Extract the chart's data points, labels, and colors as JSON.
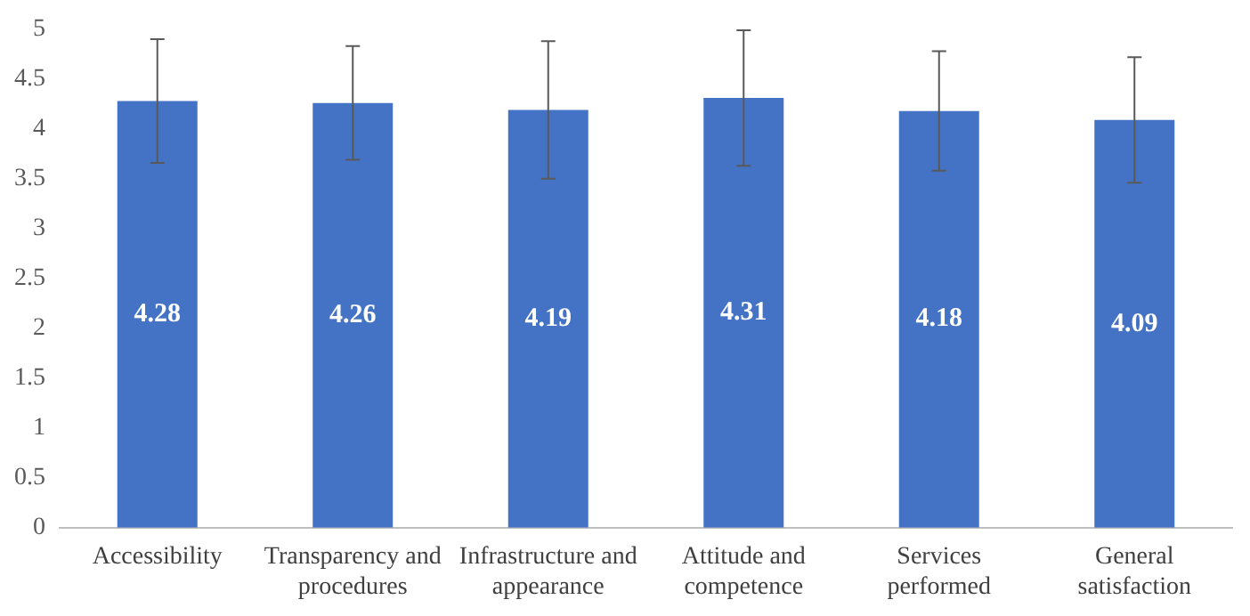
{
  "chart_data": {
    "type": "bar",
    "categories": [
      "Accessibility",
      "Transparency and procedures",
      "Infrastructure and appearance",
      "Attitude and competence",
      "Services performed",
      "General satisfaction"
    ],
    "values": [
      4.28,
      4.26,
      4.19,
      4.31,
      4.18,
      4.09
    ],
    "errors": [
      0.62,
      0.57,
      0.69,
      0.68,
      0.6,
      0.63
    ],
    "color": "#4472c4",
    "data_labels": true,
    "grid": false,
    "legend": false,
    "ylim": [
      0,
      5
    ],
    "yticks": [
      0,
      0.5,
      1,
      1.5,
      2,
      2.5,
      3,
      3.5,
      4,
      4.5,
      5
    ]
  }
}
